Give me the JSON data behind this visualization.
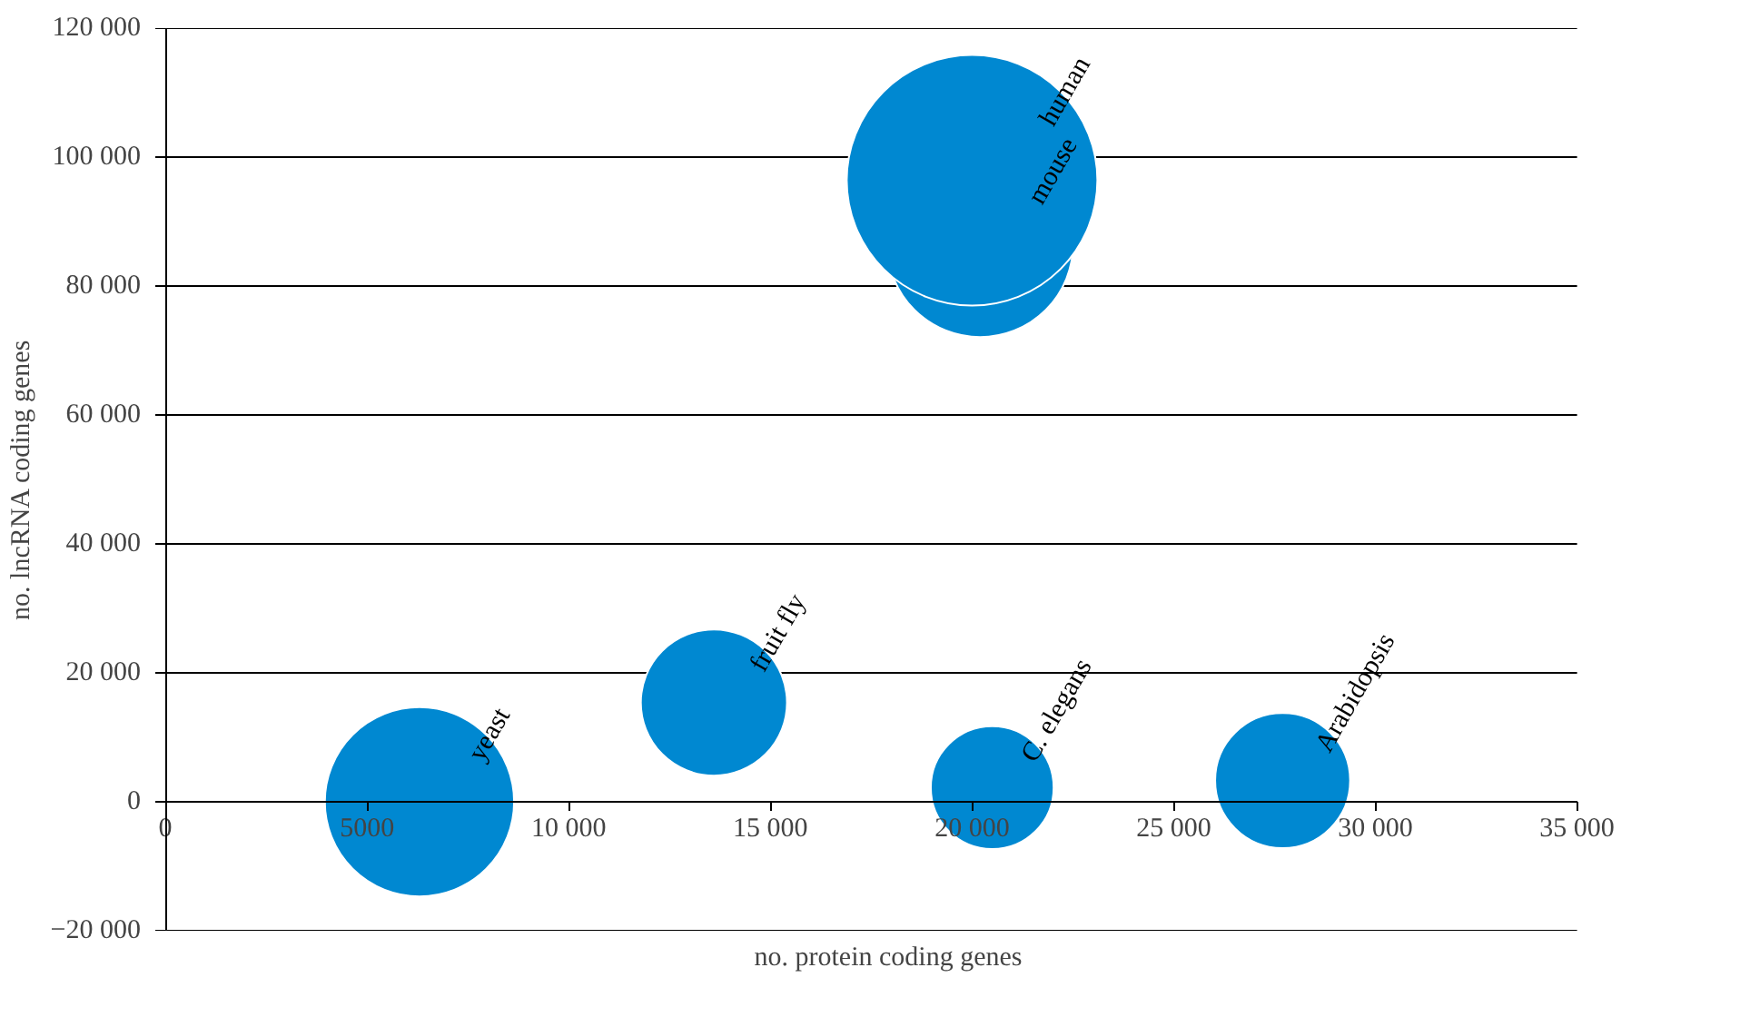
{
  "chart_data": {
    "type": "bubble",
    "xlabel": "no. protein coding genes",
    "ylabel": "no. lncRNA coding genes",
    "x": [
      6300,
      13600,
      20500,
      27700,
      20200,
      20000
    ],
    "values": [
      0,
      15400,
      2200,
      3300,
      86500,
      96400
    ],
    "sizes": [
      0.57,
      0.34,
      0.24,
      0.29,
      0.55,
      1
    ],
    "color": "#0088d1",
    "annotations": [
      {
        "text": "yeast",
        "x": 6300,
        "y": 0
      },
      {
        "text": "fruit fly",
        "x": 13600,
        "y": 15400
      },
      {
        "text": "C. elegans",
        "x": 20500,
        "y": 2200
      },
      {
        "text": "Arabidopsis",
        "x": 27700,
        "y": 3300
      },
      {
        "text": "mouse",
        "x": 20200,
        "y": 86500
      },
      {
        "text": "human",
        "x": 20000,
        "y": 96400
      }
    ],
    "xlim": [
      0,
      35000
    ],
    "ylim": [
      -20000,
      120000
    ],
    "xticks": [
      0,
      5000,
      {
        "value": 10000,
        "label": "10 000"
      },
      {
        "value": 15000,
        "label": "15 000"
      },
      {
        "value": 20000,
        "label": "20 000"
      },
      {
        "value": 25000,
        "label": "25 000"
      },
      {
        "value": 30000,
        "label": "30 000"
      },
      {
        "value": 35000,
        "label": "35 000"
      }
    ],
    "yticks": [
      {
        "value": -20000,
        "label": "−20 000"
      },
      0,
      {
        "value": 20000,
        "label": "20 000"
      },
      {
        "value": 40000,
        "label": "40 000"
      },
      {
        "value": 60000,
        "label": "60 000"
      },
      {
        "value": 80000,
        "label": "80 000"
      },
      {
        "value": 100000,
        "label": "100 000"
      },
      {
        "value": 120000,
        "label": "120 000"
      }
    ],
    "grid": "y"
  }
}
